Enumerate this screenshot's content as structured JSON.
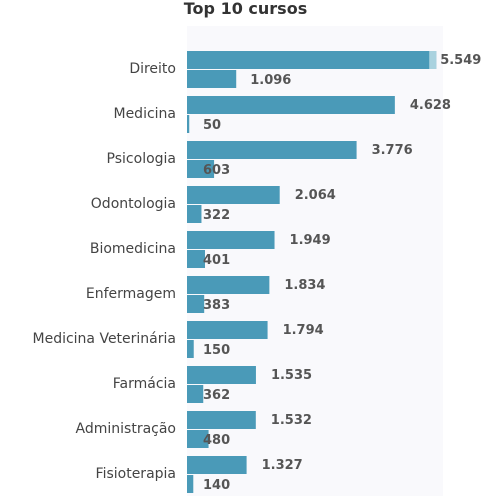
{
  "chart_data": {
    "type": "bar",
    "orientation": "horizontal",
    "title": "Top 10 cursos",
    "categories": [
      "Direito",
      "Medicina",
      "Psicologia",
      "Odontologia",
      "Biomedicina",
      "Enfermagem",
      "Medicina Veterinária",
      "Farmácia",
      "Administração",
      "Fisioterapia"
    ],
    "series": [
      {
        "values": [
          5549,
          4628,
          3776,
          2064,
          1949,
          1834,
          1794,
          1535,
          1532,
          1327
        ],
        "labels": [
          "5.549",
          "4.628",
          "3.776",
          "2.064",
          "1.949",
          "1.834",
          "1.794",
          "1.535",
          "1.532",
          "1.327"
        ]
      },
      {
        "values": [
          1096,
          50,
          603,
          322,
          401,
          383,
          150,
          362,
          480,
          140
        ],
        "labels": [
          "1.096",
          "50",
          "603",
          "322",
          "401",
          "383",
          "150",
          "362",
          "480",
          "140"
        ]
      }
    ],
    "xlim": [
      0,
      5700
    ],
    "grid": false,
    "legend": "none",
    "colors": {
      "bar": "#4a9ab8",
      "bar_highlight": "#a9d2df",
      "plot_background": "#f9f9fc"
    }
  }
}
